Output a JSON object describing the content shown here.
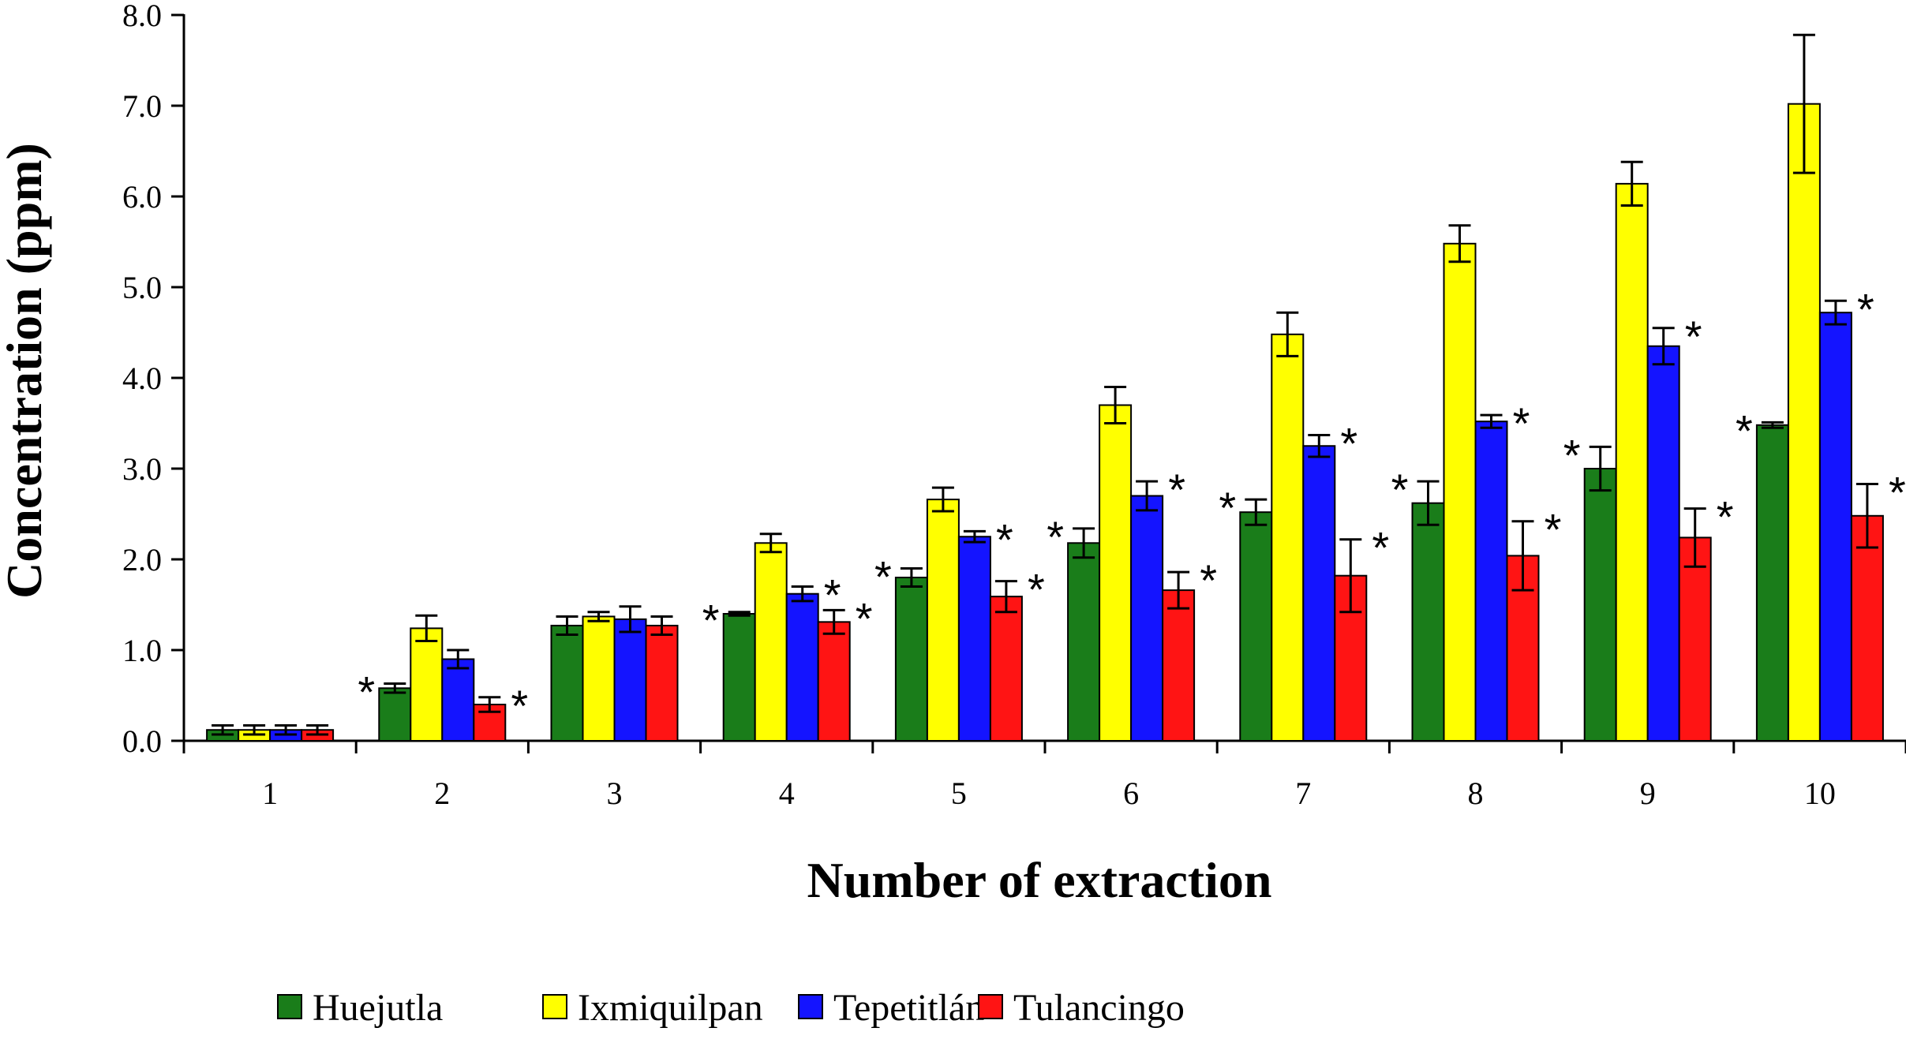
{
  "chart_data": {
    "type": "bar",
    "title": "",
    "xlabel": "Number of extraction",
    "ylabel": "Concentration (ppm)",
    "ylim": [
      0,
      8
    ],
    "yticks": [
      "0.0",
      "1.0",
      "2.0",
      "3.0",
      "4.0",
      "5.0",
      "6.0",
      "7.0",
      "8.0"
    ],
    "categories": [
      "1",
      "2",
      "3",
      "4",
      "5",
      "6",
      "7",
      "8",
      "9",
      "10"
    ],
    "legend_position": "bottom",
    "significance_marker": "*",
    "series": [
      {
        "name": "Huejutla",
        "color": "#1a7d1a",
        "values": [
          0.12,
          0.58,
          1.27,
          1.4,
          1.8,
          2.18,
          2.52,
          2.62,
          3.0,
          3.48
        ],
        "errors": [
          0.05,
          0.05,
          0.1,
          0.02,
          0.1,
          0.16,
          0.14,
          0.24,
          0.24,
          0.03
        ],
        "significant": [
          false,
          true,
          false,
          true,
          true,
          true,
          true,
          true,
          true,
          true
        ]
      },
      {
        "name": "Ixmiquilpan",
        "color": "#ffff00",
        "values": [
          0.12,
          1.24,
          1.37,
          2.18,
          2.66,
          3.7,
          4.48,
          5.48,
          6.14,
          7.02
        ],
        "errors": [
          0.05,
          0.14,
          0.05,
          0.1,
          0.13,
          0.2,
          0.24,
          0.2,
          0.24,
          0.76
        ],
        "significant": [
          false,
          false,
          false,
          false,
          false,
          false,
          false,
          false,
          false,
          false
        ]
      },
      {
        "name": "Tepetitlán",
        "color": "#1414ff",
        "values": [
          0.12,
          0.9,
          1.34,
          1.62,
          2.25,
          2.7,
          3.25,
          3.52,
          4.35,
          4.72
        ],
        "errors": [
          0.05,
          0.1,
          0.14,
          0.08,
          0.06,
          0.16,
          0.12,
          0.07,
          0.2,
          0.13
        ],
        "significant": [
          false,
          false,
          false,
          true,
          true,
          true,
          true,
          true,
          true,
          true
        ]
      },
      {
        "name": "Tulancingo",
        "color": "#ff1414",
        "values": [
          0.12,
          0.4,
          1.27,
          1.31,
          1.59,
          1.66,
          1.82,
          2.04,
          2.24,
          2.48
        ],
        "errors": [
          0.05,
          0.08,
          0.1,
          0.13,
          0.17,
          0.2,
          0.4,
          0.38,
          0.32,
          0.35
        ],
        "significant": [
          false,
          true,
          false,
          true,
          true,
          true,
          true,
          true,
          true,
          true
        ]
      }
    ]
  }
}
